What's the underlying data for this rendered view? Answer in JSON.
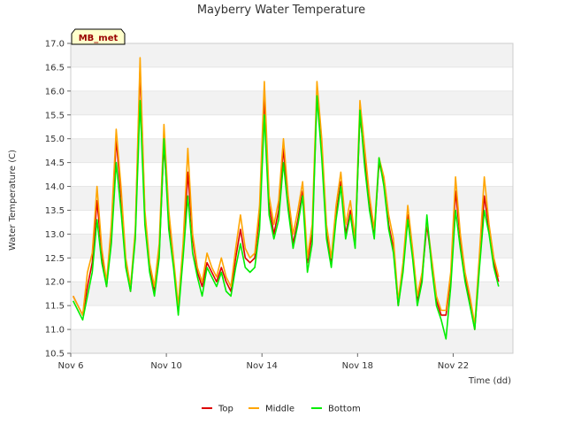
{
  "chart_data": {
    "type": "line",
    "title": "Mayberry Water Temperature",
    "xlabel": "Time (dd)",
    "ylabel": "Water Temperature (C)",
    "site_badge": "MB_met",
    "xlim": [
      6,
      24.5
    ],
    "ylim": [
      10.5,
      17.0
    ],
    "x_ticks": [
      6,
      10,
      14,
      18,
      22
    ],
    "x_tick_labels": [
      "Nov 6",
      "Nov 10",
      "Nov 14",
      "Nov 18",
      "Nov 22"
    ],
    "y_ticks": [
      10.5,
      11.0,
      11.5,
      12.0,
      12.5,
      13.0,
      13.5,
      14.0,
      14.5,
      15.0,
      15.5,
      16.0,
      16.5,
      17.0
    ],
    "y_tick_labels": [
      "10.5",
      "11.0",
      "11.5",
      "12.0",
      "12.5",
      "13.0",
      "13.5",
      "14.0",
      "14.5",
      "15.0",
      "15.5",
      "16.0",
      "16.5",
      "17.0"
    ],
    "grid": "horizontal bands",
    "legend_position": "bottom-center",
    "x": [
      6.1,
      6.3,
      6.5,
      6.7,
      6.9,
      7.1,
      7.3,
      7.5,
      7.7,
      7.9,
      8.1,
      8.3,
      8.5,
      8.7,
      8.9,
      9.1,
      9.3,
      9.5,
      9.7,
      9.9,
      10.1,
      10.3,
      10.5,
      10.7,
      10.9,
      11.1,
      11.3,
      11.5,
      11.7,
      11.9,
      12.1,
      12.3,
      12.5,
      12.7,
      12.9,
      13.1,
      13.3,
      13.5,
      13.7,
      13.9,
      14.1,
      14.3,
      14.5,
      14.7,
      14.9,
      15.1,
      15.3,
      15.5,
      15.7,
      15.9,
      16.1,
      16.3,
      16.5,
      16.7,
      16.9,
      17.1,
      17.3,
      17.5,
      17.7,
      17.9,
      18.1,
      18.3,
      18.5,
      18.7,
      18.9,
      19.1,
      19.3,
      19.5,
      19.7,
      19.9,
      20.1,
      20.3,
      20.5,
      20.7,
      20.9,
      21.1,
      21.3,
      21.5,
      21.7,
      21.9,
      22.1,
      22.3,
      22.5,
      22.7,
      22.9,
      23.1,
      23.3,
      23.5,
      23.7,
      23.9
    ],
    "series": [
      {
        "name": "Top",
        "color": "#dd0000",
        "values": [
          11.7,
          11.5,
          11.3,
          11.9,
          12.4,
          13.7,
          12.6,
          11.9,
          13.0,
          15.0,
          13.8,
          12.4,
          11.8,
          13.0,
          16.5,
          13.4,
          12.3,
          11.8,
          12.6,
          14.9,
          13.3,
          12.4,
          11.4,
          12.6,
          14.3,
          12.9,
          12.2,
          11.9,
          12.4,
          12.2,
          12.0,
          12.3,
          12.0,
          11.8,
          12.5,
          13.1,
          12.5,
          12.4,
          12.5,
          13.4,
          15.9,
          13.6,
          13.0,
          13.5,
          14.8,
          13.6,
          12.8,
          13.3,
          13.9,
          12.4,
          13.0,
          15.9,
          14.8,
          13.0,
          12.4,
          13.4,
          14.1,
          13.0,
          13.5,
          12.8,
          15.5,
          14.6,
          13.6,
          13.0,
          14.5,
          14.1,
          13.2,
          12.7,
          11.5,
          12.3,
          13.4,
          12.6,
          11.6,
          12.1,
          13.2,
          12.4,
          11.6,
          11.3,
          11.3,
          12.1,
          13.9,
          12.9,
          12.1,
          11.6,
          11.0,
          12.4,
          13.8,
          13.1,
          12.4,
          12.0
        ]
      },
      {
        "name": "Middle",
        "color": "#ffa500",
        "values": [
          11.7,
          11.5,
          11.3,
          12.2,
          12.6,
          14.0,
          12.7,
          12.0,
          13.2,
          15.2,
          14.0,
          12.5,
          11.9,
          13.1,
          16.7,
          13.5,
          12.4,
          11.9,
          12.8,
          15.3,
          13.5,
          12.5,
          11.5,
          12.8,
          14.8,
          13.0,
          12.3,
          12.0,
          12.6,
          12.3,
          12.1,
          12.5,
          12.1,
          11.9,
          12.7,
          13.4,
          12.7,
          12.5,
          12.6,
          13.6,
          16.2,
          13.8,
          13.2,
          13.7,
          15.0,
          13.8,
          13.0,
          13.5,
          14.1,
          12.5,
          13.2,
          16.2,
          15.0,
          13.2,
          12.5,
          13.6,
          14.3,
          13.2,
          13.7,
          12.9,
          15.8,
          14.8,
          13.8,
          13.1,
          14.6,
          14.2,
          13.4,
          12.9,
          11.6,
          12.4,
          13.6,
          12.7,
          11.7,
          12.2,
          13.3,
          12.5,
          11.7,
          11.4,
          11.4,
          12.2,
          14.2,
          13.0,
          12.2,
          11.7,
          11.1,
          12.6,
          14.2,
          13.2,
          12.5,
          12.1
        ]
      },
      {
        "name": "Bottom",
        "color": "#00ee00",
        "values": [
          11.6,
          11.4,
          11.2,
          11.7,
          12.2,
          13.3,
          12.4,
          11.9,
          12.8,
          14.5,
          13.5,
          12.3,
          11.8,
          12.9,
          15.8,
          13.2,
          12.2,
          11.7,
          12.5,
          15.0,
          13.1,
          12.3,
          11.3,
          12.5,
          13.8,
          12.6,
          12.1,
          11.7,
          12.3,
          12.1,
          11.9,
          12.2,
          11.8,
          11.7,
          12.3,
          12.8,
          12.3,
          12.2,
          12.3,
          13.1,
          15.5,
          13.4,
          12.9,
          13.3,
          14.5,
          13.5,
          12.7,
          13.2,
          13.8,
          12.2,
          12.8,
          15.9,
          14.6,
          12.9,
          12.3,
          13.3,
          14.0,
          12.9,
          13.4,
          12.7,
          15.6,
          14.4,
          13.5,
          12.9,
          14.6,
          14.0,
          13.1,
          12.6,
          11.5,
          12.2,
          13.3,
          12.5,
          11.5,
          12.0,
          13.4,
          12.3,
          11.5,
          11.2,
          10.8,
          11.9,
          13.5,
          12.7,
          12.0,
          11.5,
          11.0,
          12.3,
          13.5,
          13.0,
          12.3,
          11.9
        ]
      }
    ]
  }
}
